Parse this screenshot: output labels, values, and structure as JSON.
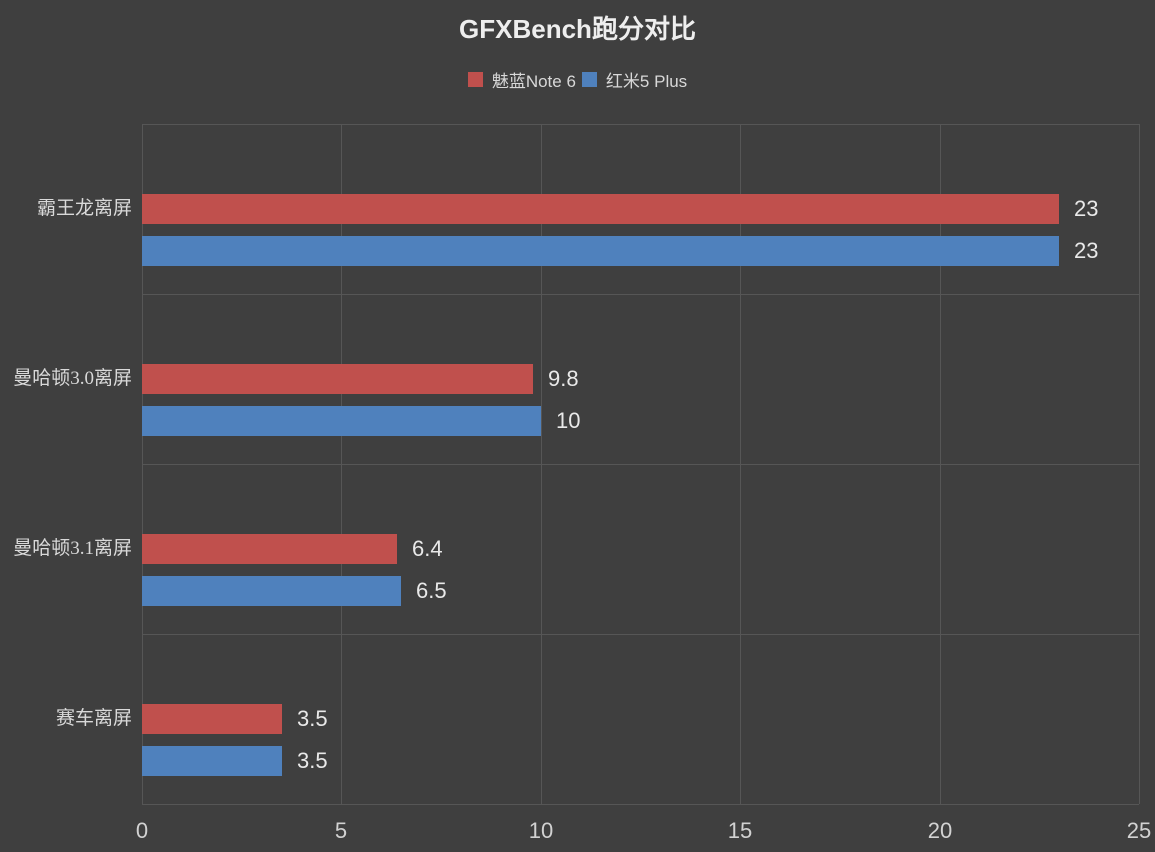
{
  "title": "GFXBench跑分对比",
  "legend": [
    {
      "label": "魅蓝Note 6",
      "color": "#c0504d"
    },
    {
      "label": "红米5 Plus",
      "color": "#4f81bd"
    }
  ],
  "chart_data": {
    "type": "bar",
    "orientation": "horizontal",
    "title": "GFXBench跑分对比",
    "categories": [
      "霸王龙离屏",
      "曼哈顿3.0离屏",
      "曼哈顿3.1离屏",
      "赛车离屏"
    ],
    "series": [
      {
        "name": "魅蓝Note 6",
        "color": "#c0504d",
        "values": [
          23,
          9.8,
          6.4,
          3.5
        ],
        "labels": [
          "23",
          "9.8",
          "6.4",
          "3.5"
        ]
      },
      {
        "name": "红米5 Plus",
        "color": "#4f81bd",
        "values": [
          23,
          10,
          6.5,
          3.5
        ],
        "labels": [
          "23",
          "10",
          "6.5",
          "3.5"
        ]
      }
    ],
    "xlim": [
      0,
      25
    ],
    "xticks": [
      "0",
      "5",
      "10",
      "15",
      "20",
      "25"
    ],
    "grid": true,
    "legend_position": "top",
    "value_labels": true
  },
  "colors": {
    "background": "#3f3f3f",
    "gridline": "#565656",
    "axis_text": "#d2d2d2",
    "category_text": "#d9d9d9",
    "value_text": "#e9e9e9",
    "title_text": "#eeeeee"
  }
}
